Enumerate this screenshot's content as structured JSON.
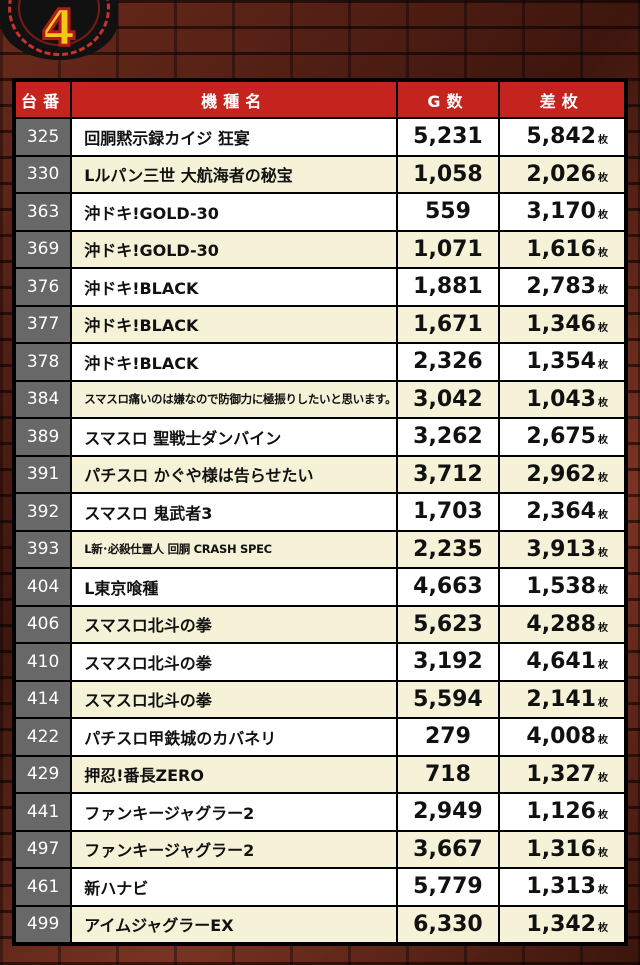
{
  "badge": {
    "number": "4"
  },
  "table": {
    "headers": {
      "no": "台番",
      "name": "機種名",
      "games": "G数",
      "diff": "差枚"
    },
    "unit": "枚",
    "rows": [
      {
        "no": "325",
        "name": "回胴黙示録カイジ 狂宴",
        "games": "5,231",
        "diff": "5,842"
      },
      {
        "no": "330",
        "name": "Lルパン三世 大航海者の秘宝",
        "games": "1,058",
        "diff": "2,026"
      },
      {
        "no": "363",
        "name": "沖ドキ!GOLD-30",
        "games": "559",
        "diff": "3,170"
      },
      {
        "no": "369",
        "name": "沖ドキ!GOLD-30",
        "games": "1,071",
        "diff": "1,616"
      },
      {
        "no": "376",
        "name": "沖ドキ!BLACK",
        "games": "1,881",
        "diff": "2,783"
      },
      {
        "no": "377",
        "name": "沖ドキ!BLACK",
        "games": "1,671",
        "diff": "1,346"
      },
      {
        "no": "378",
        "name": "沖ドキ!BLACK",
        "games": "2,326",
        "diff": "1,354"
      },
      {
        "no": "384",
        "name": "スマスロ痛いのは嫌なので防御力に極振りしたいと思います。",
        "games": "3,042",
        "diff": "1,043"
      },
      {
        "no": "389",
        "name": "スマスロ 聖戦士ダンバイン",
        "games": "3,262",
        "diff": "2,675"
      },
      {
        "no": "391",
        "name": "パチスロ かぐや様は告らせたい",
        "games": "3,712",
        "diff": "2,962"
      },
      {
        "no": "392",
        "name": "スマスロ 鬼武者3",
        "games": "1,703",
        "diff": "2,364"
      },
      {
        "no": "393",
        "name": "L新･必殺仕置人 回胴 CRASH SPEC",
        "games": "2,235",
        "diff": "3,913"
      },
      {
        "no": "404",
        "name": "L東京喰種",
        "games": "4,663",
        "diff": "1,538"
      },
      {
        "no": "406",
        "name": "スマスロ北斗の拳",
        "games": "5,623",
        "diff": "4,288"
      },
      {
        "no": "410",
        "name": "スマスロ北斗の拳",
        "games": "3,192",
        "diff": "4,641"
      },
      {
        "no": "414",
        "name": "スマスロ北斗の拳",
        "games": "5,594",
        "diff": "2,141"
      },
      {
        "no": "422",
        "name": "パチスロ甲鉄城のカバネリ",
        "games": "279",
        "diff": "4,008"
      },
      {
        "no": "429",
        "name": "押忍!番長ZERO",
        "games": "718",
        "diff": "1,327"
      },
      {
        "no": "441",
        "name": "ファンキージャグラー2",
        "games": "2,949",
        "diff": "1,126"
      },
      {
        "no": "497",
        "name": "ファンキージャグラー2",
        "games": "3,667",
        "diff": "1,316"
      },
      {
        "no": "461",
        "name": "新ハナビ",
        "games": "5,779",
        "diff": "1,313"
      },
      {
        "no": "499",
        "name": "アイムジャグラーEX",
        "games": "6,330",
        "diff": "1,342"
      }
    ]
  }
}
